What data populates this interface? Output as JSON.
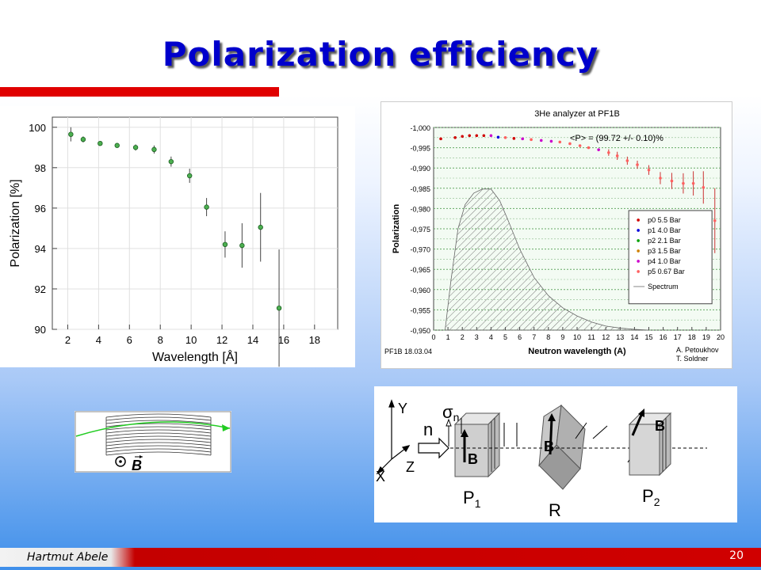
{
  "slide": {
    "title": "Polarization efficiency",
    "author": "Hartmut Abele",
    "page": "20"
  },
  "chart_data": [
    {
      "type": "scatter",
      "title": "",
      "xlabel": "Wavelength [Å]",
      "ylabel": "Polarization [%]",
      "xlim": [
        1,
        19.5
      ],
      "ylim": [
        90,
        100.5
      ],
      "xticks": [
        2,
        4,
        6,
        8,
        10,
        12,
        14,
        16,
        18
      ],
      "yticks": [
        90,
        92,
        94,
        96,
        98,
        100
      ],
      "grid": true,
      "color": "#4caf50",
      "points": [
        {
          "x": 2.2,
          "y": 99.65,
          "err": 0.35
        },
        {
          "x": 3.0,
          "y": 99.4,
          "err": 0.15
        },
        {
          "x": 4.1,
          "y": 99.2,
          "err": 0.1
        },
        {
          "x": 5.2,
          "y": 99.1,
          "err": 0.1
        },
        {
          "x": 6.4,
          "y": 99.0,
          "err": 0.15
        },
        {
          "x": 7.6,
          "y": 98.9,
          "err": 0.2
        },
        {
          "x": 8.7,
          "y": 98.3,
          "err": 0.25
        },
        {
          "x": 9.9,
          "y": 97.6,
          "err": 0.35
        },
        {
          "x": 11.0,
          "y": 96.05,
          "err": 0.45
        },
        {
          "x": 12.2,
          "y": 94.2,
          "err": 0.65
        },
        {
          "x": 13.3,
          "y": 94.15,
          "err": 1.1
        },
        {
          "x": 14.5,
          "y": 95.05,
          "err": 1.7
        },
        {
          "x": 15.7,
          "y": 91.05,
          "err": 2.9
        }
      ]
    },
    {
      "type": "scatter",
      "title": "3He analyzer at PF1B",
      "annotation": "<P> = (99.72 +/- 0.10)%",
      "xlabel": "Neutron wavelength (A)",
      "ylabel": "Polarization",
      "xlim": [
        0,
        20
      ],
      "ylim": [
        -0.95,
        -1.0
      ],
      "xticks": [
        0,
        1,
        2,
        3,
        4,
        5,
        6,
        7,
        8,
        9,
        10,
        11,
        12,
        13,
        14,
        15,
        16,
        17,
        18,
        19,
        20
      ],
      "yticks": [
        "-1,000",
        "-0,995",
        "-0,990",
        "-0,985",
        "-0,980",
        "-0,975",
        "-0,970",
        "-0,965",
        "-0,960",
        "-0,955",
        "-0,950"
      ],
      "ytick_values": [
        -1.0,
        -0.995,
        -0.99,
        -0.985,
        -0.98,
        -0.975,
        -0.97,
        -0.965,
        -0.96,
        -0.955,
        -0.95
      ],
      "grid": true,
      "legend_position": "right",
      "legend": [
        {
          "label": "p0  5.5 Bar",
          "color": "#d00000"
        },
        {
          "label": "p1  4.0  Bar",
          "color": "#0000dd"
        },
        {
          "label": "p2  2.1 Bar",
          "color": "#00a000"
        },
        {
          "label": "p3  1.5 Bar",
          "color": "#d08000"
        },
        {
          "label": "p4  1.0 Bar",
          "color": "#cc00cc"
        },
        {
          "label": "p5  0.67 Bar",
          "color": "#ff6060"
        },
        {
          "label": "Spectrum",
          "color": "#888888"
        }
      ],
      "footer_left": "PF1B   18.03.04",
      "footer_right": [
        "A. Petoukhov",
        "T. Soldner"
      ],
      "points": [
        {
          "x": 0.5,
          "y": -0.9972,
          "c": "#d00000"
        },
        {
          "x": 1.5,
          "y": -0.9975,
          "c": "#d00000"
        },
        {
          "x": 2.0,
          "y": -0.9978,
          "c": "#d00000"
        },
        {
          "x": 2.5,
          "y": -0.998,
          "c": "#d00000"
        },
        {
          "x": 3.0,
          "y": -0.998,
          "c": "#d00000"
        },
        {
          "x": 3.5,
          "y": -0.998,
          "c": "#d00000"
        },
        {
          "x": 4.0,
          "y": -0.998,
          "c": "#cc00cc"
        },
        {
          "x": 4.5,
          "y": -0.9976,
          "c": "#0000dd"
        },
        {
          "x": 5.0,
          "y": -0.9975,
          "c": "#ff6060"
        },
        {
          "x": 5.6,
          "y": -0.9973,
          "c": "#d00000"
        },
        {
          "x": 6.2,
          "y": -0.9972,
          "c": "#cc00cc"
        },
        {
          "x": 6.8,
          "y": -0.997,
          "c": "#ff6060"
        },
        {
          "x": 7.5,
          "y": -0.9968,
          "c": "#cc00cc"
        },
        {
          "x": 8.2,
          "y": -0.9966,
          "c": "#cc00cc"
        },
        {
          "x": 8.8,
          "y": -0.9964,
          "c": "#ff6060"
        },
        {
          "x": 9.5,
          "y": -0.996,
          "c": "#ff6060"
        },
        {
          "x": 10.2,
          "y": -0.9955,
          "c": "#ff6060"
        },
        {
          "x": 10.8,
          "y": -0.995,
          "c": "#ff6060"
        },
        {
          "x": 11.5,
          "y": -0.9945,
          "c": "#cc00cc"
        },
        {
          "x": 12.2,
          "y": -0.9938,
          "c": "#ff6060",
          "err": 0.0008
        },
        {
          "x": 12.8,
          "y": -0.993,
          "c": "#ff6060",
          "err": 0.001
        },
        {
          "x": 13.5,
          "y": -0.9918,
          "c": "#ff6060",
          "err": 0.001
        },
        {
          "x": 14.2,
          "y": -0.9908,
          "c": "#ff6060",
          "err": 0.001
        },
        {
          "x": 15.0,
          "y": -0.9895,
          "c": "#ff6060",
          "err": 0.0012
        },
        {
          "x": 15.8,
          "y": -0.9875,
          "c": "#ff6060",
          "err": 0.0015
        },
        {
          "x": 16.6,
          "y": -0.9868,
          "c": "#ff6060",
          "err": 0.002
        },
        {
          "x": 17.4,
          "y": -0.9862,
          "c": "#ff6060",
          "err": 0.0025
        },
        {
          "x": 18.1,
          "y": -0.9862,
          "c": "#ff6060",
          "err": 0.003
        },
        {
          "x": 18.8,
          "y": -0.9852,
          "c": "#ff6060",
          "err": 0.004
        },
        {
          "x": 19.6,
          "y": -0.977,
          "c": "#ff6060",
          "err": 0.008
        }
      ],
      "spectrum": [
        [
          0.8,
          -0.95
        ],
        [
          1.2,
          -0.962
        ],
        [
          1.7,
          -0.975
        ],
        [
          2.2,
          -0.981
        ],
        [
          2.8,
          -0.9838
        ],
        [
          3.4,
          -0.9848
        ],
        [
          4.0,
          -0.9848
        ],
        [
          4.6,
          -0.982
        ],
        [
          5.2,
          -0.977
        ],
        [
          6.0,
          -0.97
        ],
        [
          7.0,
          -0.963
        ],
        [
          8.0,
          -0.9585
        ],
        [
          9.0,
          -0.9555
        ],
        [
          10.0,
          -0.9535
        ],
        [
          11.0,
          -0.952
        ],
        [
          12.0,
          -0.951
        ],
        [
          13.0,
          -0.9505
        ],
        [
          14.0,
          -0.9502
        ],
        [
          15.0,
          -0.95
        ]
      ]
    }
  ],
  "diagram": {
    "field_label": "B",
    "labels": {
      "y": "Y",
      "x": "X",
      "z": "Z",
      "sigma": "σ",
      "sigma_sub": "n",
      "n": "n",
      "b": "B",
      "p1": "P",
      "p1_sub": "1",
      "r": "R",
      "p2": "P",
      "p2_sub": "2"
    }
  }
}
